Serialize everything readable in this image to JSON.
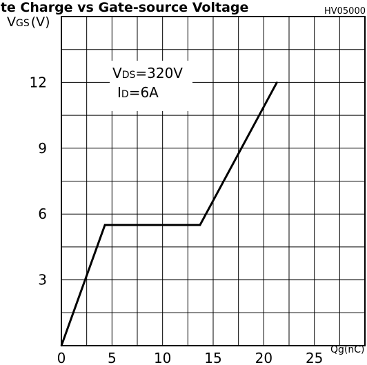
{
  "chart_data": {
    "type": "line",
    "title": "ate Charge vs Gate-source Voltage",
    "figure_code": "HV05000",
    "ylabel": "V",
    "ylabel_sub": "GS",
    "ylabel_unit": "(V)",
    "xlabel": "Qg(nC)",
    "xlim": [
      0,
      30
    ],
    "ylim": [
      0,
      15
    ],
    "x_ticks": [
      0,
      5,
      10,
      15,
      20,
      25
    ],
    "y_ticks": [
      3,
      6,
      9,
      12
    ],
    "grid": true,
    "grid_x_step": 2.5,
    "grid_y_step": 1.5,
    "annotations": [
      {
        "prefix": "V",
        "sub": "DS",
        "text": "=320V"
      },
      {
        "prefix": "I",
        "sub": "D",
        "text": "=6A"
      }
    ],
    "series": [
      {
        "color": "#000000",
        "x": [
          0,
          4.3,
          13.7,
          21.3
        ],
        "y": [
          0,
          5.5,
          5.5,
          12
        ]
      }
    ]
  }
}
